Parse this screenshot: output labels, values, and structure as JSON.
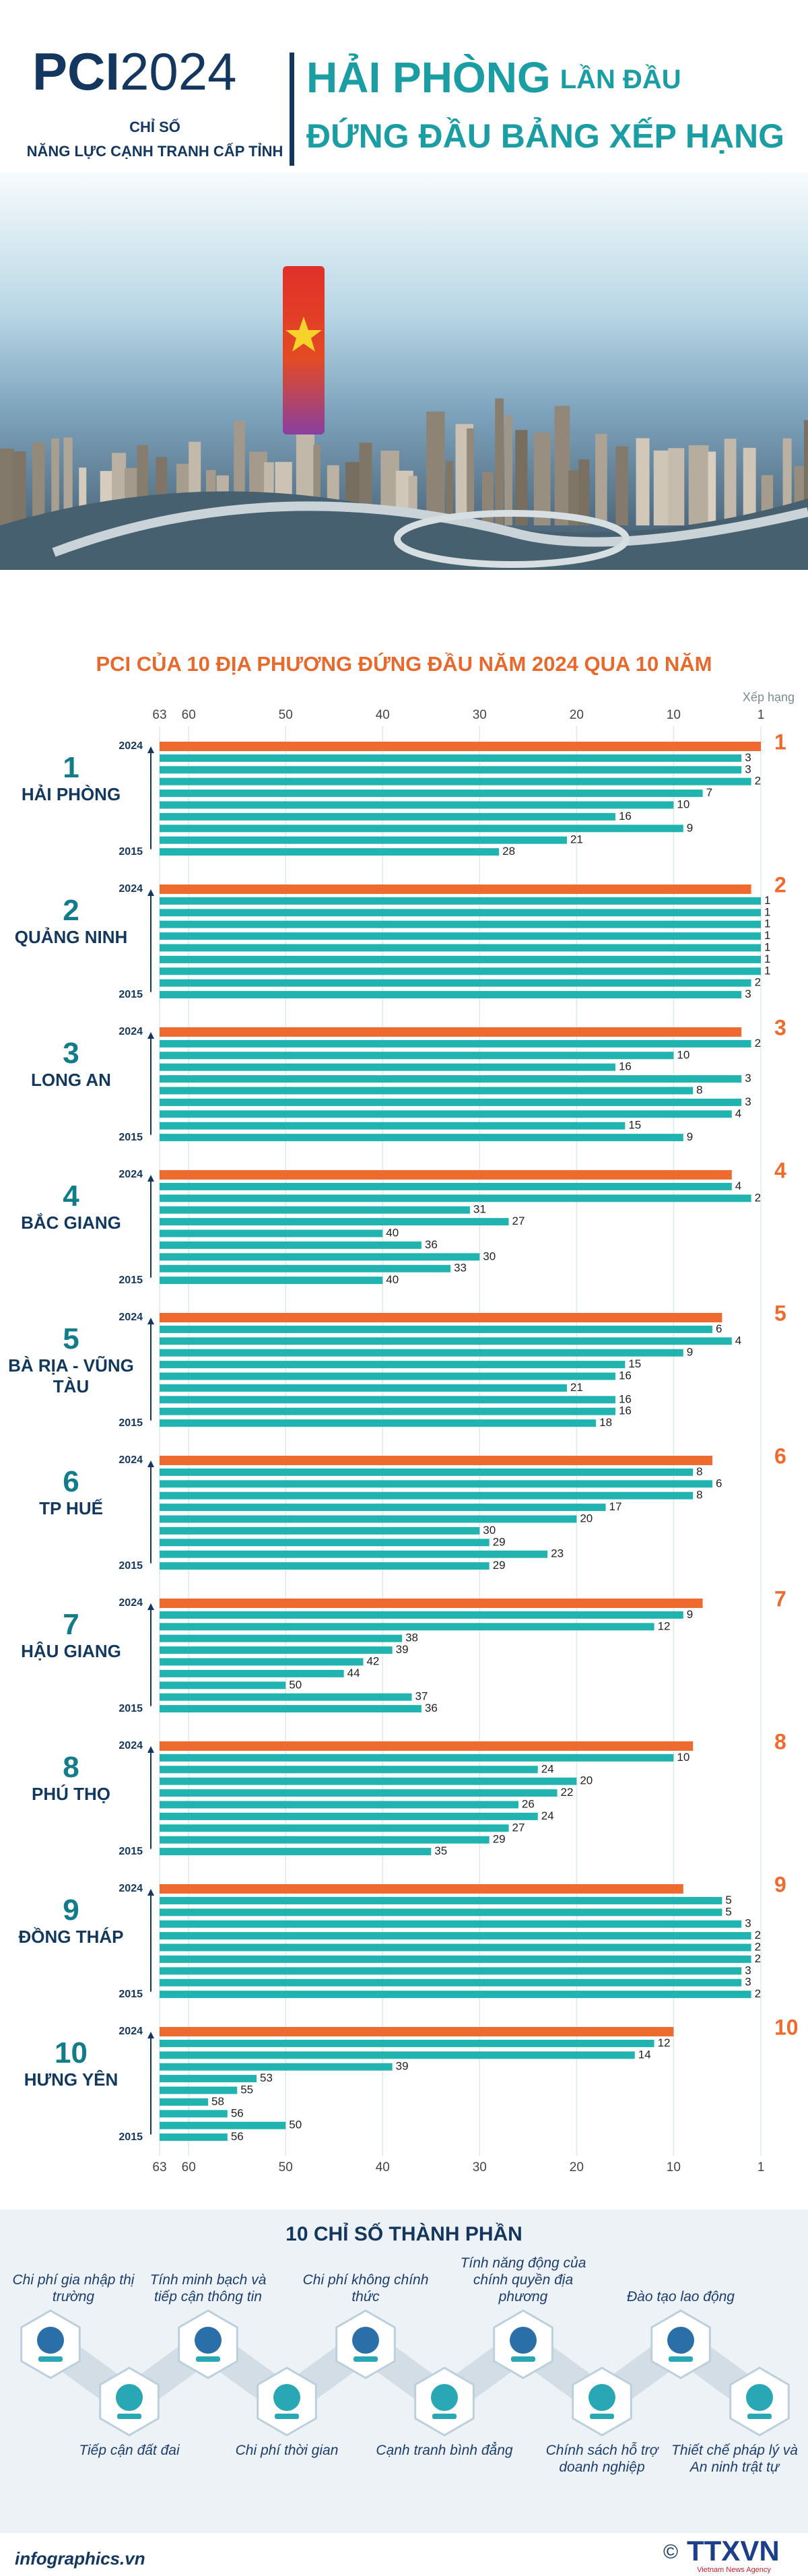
{
  "header": {
    "brand": "PCI",
    "year": "2024",
    "subtitle": [
      "CHỈ SỐ",
      "NĂNG LỰC CẠNH TRANH CẤP TỈNH"
    ],
    "headline": {
      "main": "HẢI PHÒNG",
      "suffix": "LẦN ĐẦU",
      "line2": "ĐỨNG ĐẦU BẢNG XẾP HẠNG"
    }
  },
  "chart_data": {
    "type": "bar",
    "orientation": "horizontal",
    "title": "PCI CỦA 10 ĐỊA PHƯƠNG ĐỨNG ĐẦU NĂM 2024 QUA 10 NĂM",
    "xlabel": "Xếp hạng",
    "categories": [
      "2024",
      null,
      null,
      null,
      null,
      null,
      null,
      null,
      null,
      "2015"
    ],
    "series": [
      {
        "name": "HẢI PHÒNG",
        "color": "#21b3b0",
        "values": [
          1,
          3,
          3,
          2,
          7,
          10,
          16,
          9,
          21,
          28
        ]
      },
      {
        "name": "QUẢNG NINH",
        "color": "#21b3b0",
        "values": [
          2,
          1,
          1,
          1,
          1,
          1,
          1,
          1,
          2,
          3
        ]
      },
      {
        "name": "LONG AN",
        "color": "#21b3b0",
        "values": [
          3,
          2,
          10,
          16,
          3,
          8,
          3,
          4,
          15,
          9
        ]
      },
      {
        "name": "BẮC GIANG",
        "color": "#21b3b0",
        "values": [
          4,
          4,
          2,
          31,
          27,
          40,
          36,
          30,
          33,
          40
        ]
      },
      {
        "name": "BÀ RỊA - VŨNG TÀU",
        "color": "#21b3b0",
        "values": [
          5,
          6,
          4,
          9,
          15,
          16,
          21,
          16,
          16,
          18
        ]
      },
      {
        "name": "TP HUẾ",
        "color": "#21b3b0",
        "values": [
          6,
          8,
          6,
          8,
          17,
          20,
          30,
          29,
          23,
          29
        ]
      },
      {
        "name": "HẬU GIANG",
        "color": "#21b3b0",
        "values": [
          7,
          9,
          12,
          38,
          39,
          42,
          44,
          50,
          37,
          36
        ]
      },
      {
        "name": "PHÚ THỌ",
        "color": "#21b3b0",
        "values": [
          8,
          10,
          24,
          20,
          22,
          26,
          24,
          27,
          29,
          35
        ]
      },
      {
        "name": "ĐỒNG THÁP",
        "color": "#21b3b0",
        "values": [
          9,
          5,
          5,
          3,
          2,
          2,
          2,
          3,
          3,
          2
        ]
      },
      {
        "name": "HƯNG YÊN",
        "color": "#21b3b0",
        "values": [
          10,
          12,
          14,
          39,
          53,
          55,
          58,
          56,
          50,
          56
        ]
      }
    ],
    "highlight_color": "#ef6a2e",
    "xlim": [
      63,
      1
    ],
    "xticks": [
      63,
      60,
      50,
      40,
      30,
      20,
      10,
      1
    ],
    "grid": true
  },
  "components": {
    "title": "10 CHỈ SỐ THÀNH PHẦN",
    "items": [
      "Chi phí gia nhập thị trường",
      "Tiếp cận đất đai",
      "Tính minh bạch và tiếp cận thông tin",
      "Chi phí thời gian",
      "Chi phí không chính thức",
      "Cạnh tranh bình đẳng",
      "Tính năng động của chính quyền địa phương",
      "Chính sách hỗ trợ doanh nghiệp",
      "Đào tạo lao động",
      "Thiết chế pháp lý và An ninh trật tự"
    ]
  },
  "footer": {
    "site": "infographics.vn",
    "copyright": "©",
    "logo": "TTXVN",
    "logo_sub": "Vietnam News Agency"
  }
}
